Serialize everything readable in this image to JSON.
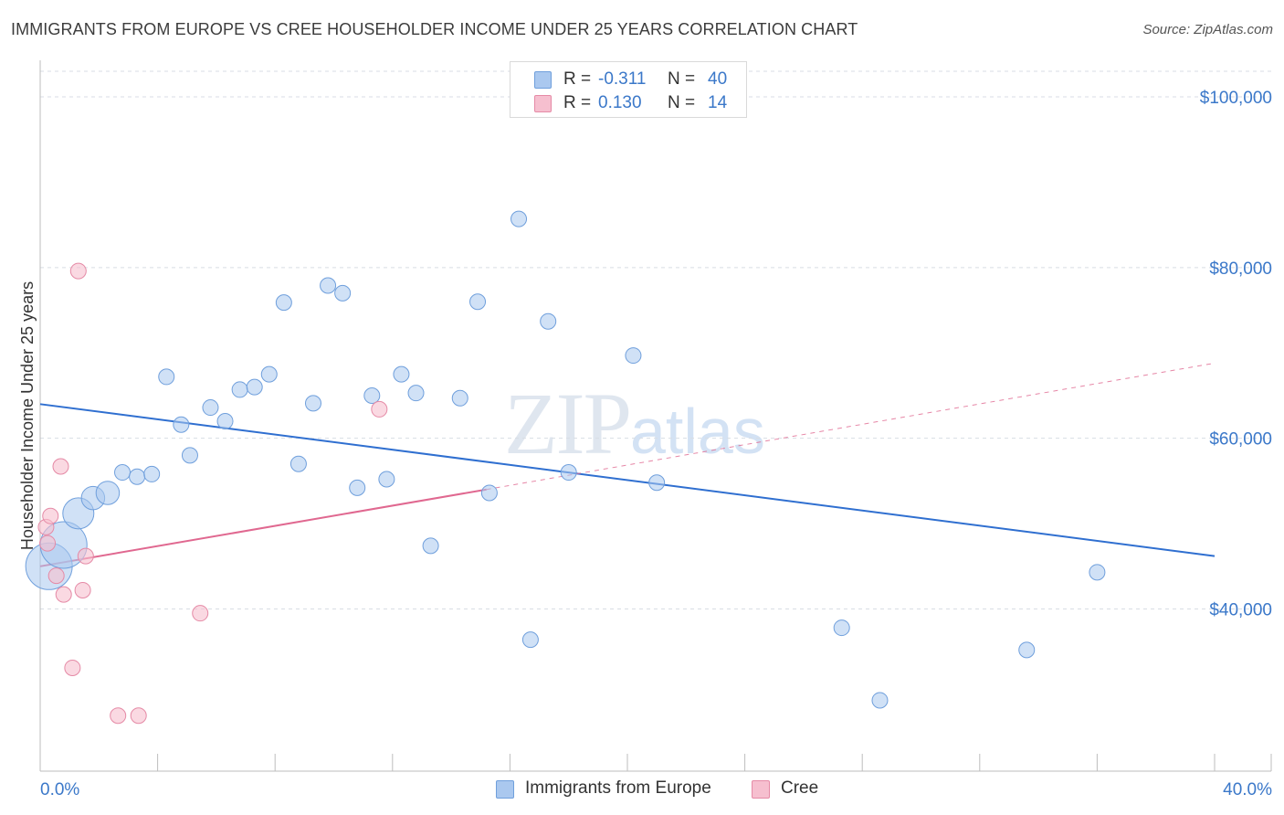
{
  "title": "IMMIGRANTS FROM EUROPE VS CREE HOUSEHOLDER INCOME UNDER 25 YEARS CORRELATION CHART",
  "source": "Source: ZipAtlas.com",
  "watermark": {
    "zip": "ZIP",
    "atlas": "atlas"
  },
  "legend_top": [
    {
      "r_label": "R =",
      "r_value": "-0.311",
      "n_label": "N =",
      "n_value": "40"
    },
    {
      "r_label": "R =",
      "r_value": "0.130",
      "n_label": "N =",
      "n_value": "14"
    }
  ],
  "colors": {
    "europe_fill": "#aac8ef",
    "europe_stroke": "#6f9fdc",
    "europe_line": "#2f6fd0",
    "cree_fill": "#f6bfcf",
    "cree_stroke": "#e58aa6",
    "cree_line": "#e06890",
    "axis_text": "#3b78c9",
    "grid": "#d8dde4"
  },
  "chart_data": {
    "type": "scatter",
    "title": "IMMIGRANTS FROM EUROPE VS CREE HOUSEHOLDER INCOME UNDER 25 YEARS CORRELATION CHART",
    "xlabel": "",
    "ylabel": "Householder Income Under 25 years",
    "xlim": [
      0,
      40
    ],
    "ylim": [
      21000,
      103000
    ],
    "x_tick_labels": [
      "0.0%",
      "40.0%"
    ],
    "y_ticks": [
      40000,
      60000,
      80000,
      100000
    ],
    "y_tick_labels": [
      "$40,000",
      "$60,000",
      "$80,000",
      "$100,000"
    ],
    "grid": true,
    "legend_position": "bottom",
    "series": [
      {
        "name": "Immigrants from Europe",
        "r": -0.311,
        "n": 40,
        "trend": {
          "x": [
            0,
            40
          ],
          "y": [
            64000,
            46200
          ]
        },
        "trend_dashed_extension": false,
        "points": [
          {
            "x": 0.3,
            "y": 45000,
            "size": 3
          },
          {
            "x": 0.8,
            "y": 47500,
            "size": 3
          },
          {
            "x": 1.3,
            "y": 51200,
            "size": 2
          },
          {
            "x": 1.8,
            "y": 53000,
            "size": 1.5
          },
          {
            "x": 2.3,
            "y": 53600,
            "size": 1.5
          },
          {
            "x": 2.8,
            "y": 56000,
            "size": 1
          },
          {
            "x": 3.3,
            "y": 55500,
            "size": 1
          },
          {
            "x": 3.8,
            "y": 55800,
            "size": 1
          },
          {
            "x": 4.3,
            "y": 67200,
            "size": 1
          },
          {
            "x": 4.8,
            "y": 61600,
            "size": 1
          },
          {
            "x": 5.1,
            "y": 58000,
            "size": 1
          },
          {
            "x": 5.8,
            "y": 63600,
            "size": 1
          },
          {
            "x": 6.3,
            "y": 62000,
            "size": 1
          },
          {
            "x": 6.8,
            "y": 65700,
            "size": 1
          },
          {
            "x": 7.3,
            "y": 66000,
            "size": 1
          },
          {
            "x": 7.8,
            "y": 67500,
            "size": 1
          },
          {
            "x": 8.3,
            "y": 75900,
            "size": 1
          },
          {
            "x": 8.8,
            "y": 57000,
            "size": 1
          },
          {
            "x": 9.3,
            "y": 64100,
            "size": 1
          },
          {
            "x": 9.8,
            "y": 77900,
            "size": 1
          },
          {
            "x": 10.3,
            "y": 77000,
            "size": 1
          },
          {
            "x": 10.8,
            "y": 54200,
            "size": 1
          },
          {
            "x": 11.3,
            "y": 65000,
            "size": 1
          },
          {
            "x": 11.8,
            "y": 55200,
            "size": 1
          },
          {
            "x": 12.3,
            "y": 67500,
            "size": 1
          },
          {
            "x": 12.8,
            "y": 65300,
            "size": 1
          },
          {
            "x": 13.3,
            "y": 47400,
            "size": 1
          },
          {
            "x": 14.3,
            "y": 64700,
            "size": 1
          },
          {
            "x": 14.9,
            "y": 76000,
            "size": 1
          },
          {
            "x": 15.3,
            "y": 53600,
            "size": 1
          },
          {
            "x": 16.3,
            "y": 85700,
            "size": 1
          },
          {
            "x": 16.7,
            "y": 36400,
            "size": 1
          },
          {
            "x": 17.3,
            "y": 73700,
            "size": 1
          },
          {
            "x": 18.0,
            "y": 56000,
            "size": 1
          },
          {
            "x": 20.2,
            "y": 69700,
            "size": 1
          },
          {
            "x": 21.0,
            "y": 54800,
            "size": 1
          },
          {
            "x": 27.3,
            "y": 37800,
            "size": 1
          },
          {
            "x": 28.6,
            "y": 29300,
            "size": 1
          },
          {
            "x": 33.6,
            "y": 35200,
            "size": 1
          },
          {
            "x": 36.0,
            "y": 44300,
            "size": 1
          }
        ]
      },
      {
        "name": "Cree",
        "r": 0.13,
        "n": 14,
        "trend": {
          "x": [
            0,
            15.2
          ],
          "y": [
            45000,
            54000
          ]
        },
        "trend_dashed_extension": {
          "x": [
            15.2,
            40
          ],
          "y": [
            54000,
            68800
          ]
        },
        "points": [
          {
            "x": 0.2,
            "y": 49600,
            "size": 1
          },
          {
            "x": 0.25,
            "y": 47700,
            "size": 1
          },
          {
            "x": 0.35,
            "y": 50900,
            "size": 1
          },
          {
            "x": 0.55,
            "y": 43900,
            "size": 1
          },
          {
            "x": 0.7,
            "y": 56700,
            "size": 1
          },
          {
            "x": 0.8,
            "y": 41700,
            "size": 1
          },
          {
            "x": 1.1,
            "y": 33100,
            "size": 1
          },
          {
            "x": 1.3,
            "y": 79600,
            "size": 1
          },
          {
            "x": 1.45,
            "y": 42200,
            "size": 1
          },
          {
            "x": 1.55,
            "y": 46200,
            "size": 1
          },
          {
            "x": 2.65,
            "y": 27500,
            "size": 1
          },
          {
            "x": 3.35,
            "y": 27500,
            "size": 1
          },
          {
            "x": 5.45,
            "y": 39500,
            "size": 1
          },
          {
            "x": 11.55,
            "y": 63400,
            "size": 1
          }
        ]
      }
    ]
  }
}
